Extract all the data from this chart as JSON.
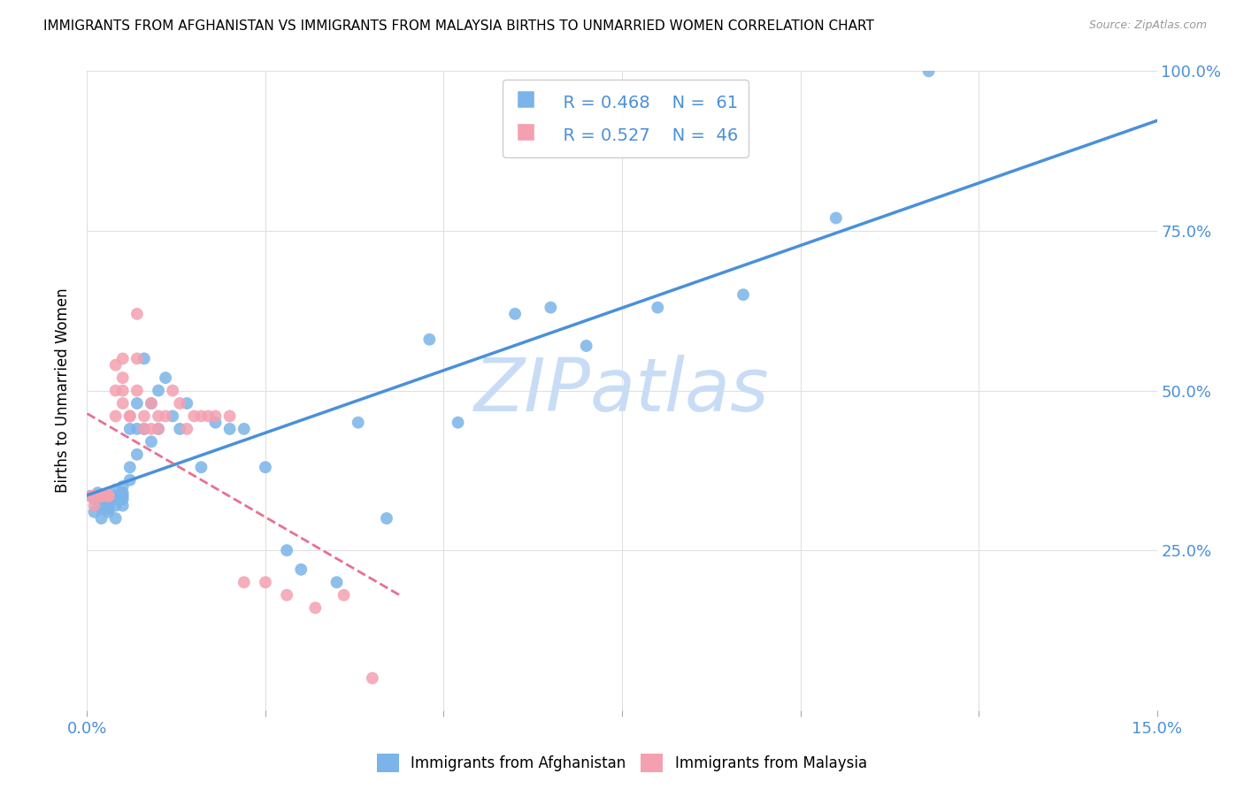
{
  "title": "IMMIGRANTS FROM AFGHANISTAN VS IMMIGRANTS FROM MALAYSIA BIRTHS TO UNMARRIED WOMEN CORRELATION CHART",
  "source": "Source: ZipAtlas.com",
  "ylabel": "Births to Unmarried Women",
  "xlim": [
    0.0,
    0.15
  ],
  "ylim": [
    0.0,
    1.0
  ],
  "legend_r_blue": "R = 0.468",
  "legend_n_blue": "N =  61",
  "legend_r_pink": "R = 0.527",
  "legend_n_pink": "N =  46",
  "blue_color": "#7ab4e8",
  "pink_color": "#f4a0b0",
  "blue_line_color": "#4a90d9",
  "pink_line_color": "#e87090",
  "watermark": "ZIPatlas",
  "watermark_color": "#c8ddf5",
  "afghanistan_x": [
    0.0005,
    0.001,
    0.001,
    0.001,
    0.0015,
    0.0015,
    0.002,
    0.002,
    0.002,
    0.002,
    0.0025,
    0.003,
    0.003,
    0.003,
    0.003,
    0.003,
    0.004,
    0.004,
    0.004,
    0.004,
    0.004,
    0.005,
    0.005,
    0.005,
    0.005,
    0.005,
    0.006,
    0.006,
    0.006,
    0.007,
    0.007,
    0.007,
    0.008,
    0.008,
    0.009,
    0.009,
    0.01,
    0.01,
    0.011,
    0.012,
    0.013,
    0.014,
    0.016,
    0.018,
    0.02,
    0.022,
    0.025,
    0.028,
    0.03,
    0.035,
    0.038,
    0.042,
    0.048,
    0.052,
    0.06,
    0.065,
    0.07,
    0.08,
    0.092,
    0.105,
    0.118
  ],
  "afghanistan_y": [
    0.335,
    0.31,
    0.33,
    0.335,
    0.335,
    0.34,
    0.3,
    0.315,
    0.32,
    0.33,
    0.335,
    0.31,
    0.315,
    0.32,
    0.325,
    0.335,
    0.3,
    0.32,
    0.33,
    0.335,
    0.345,
    0.32,
    0.33,
    0.335,
    0.34,
    0.35,
    0.36,
    0.38,
    0.44,
    0.4,
    0.44,
    0.48,
    0.44,
    0.55,
    0.42,
    0.48,
    0.44,
    0.5,
    0.52,
    0.46,
    0.44,
    0.48,
    0.38,
    0.45,
    0.44,
    0.44,
    0.38,
    0.25,
    0.22,
    0.2,
    0.45,
    0.3,
    0.58,
    0.45,
    0.62,
    0.63,
    0.57,
    0.63,
    0.65,
    0.77,
    1.0
  ],
  "malaysia_x": [
    0.0005,
    0.001,
    0.001,
    0.001,
    0.0015,
    0.0015,
    0.002,
    0.002,
    0.002,
    0.0025,
    0.003,
    0.003,
    0.003,
    0.004,
    0.004,
    0.004,
    0.005,
    0.005,
    0.005,
    0.005,
    0.006,
    0.006,
    0.007,
    0.007,
    0.007,
    0.008,
    0.008,
    0.009,
    0.009,
    0.01,
    0.01,
    0.011,
    0.012,
    0.013,
    0.014,
    0.015,
    0.016,
    0.017,
    0.018,
    0.02,
    0.022,
    0.025,
    0.028,
    0.032,
    0.036,
    0.04
  ],
  "malaysia_y": [
    0.335,
    0.32,
    0.335,
    0.335,
    0.335,
    0.335,
    0.335,
    0.335,
    0.335,
    0.335,
    0.335,
    0.335,
    0.335,
    0.54,
    0.46,
    0.5,
    0.55,
    0.48,
    0.52,
    0.5,
    0.46,
    0.46,
    0.62,
    0.55,
    0.5,
    0.44,
    0.46,
    0.44,
    0.48,
    0.44,
    0.46,
    0.46,
    0.5,
    0.48,
    0.44,
    0.46,
    0.46,
    0.46,
    0.46,
    0.46,
    0.2,
    0.2,
    0.18,
    0.16,
    0.18,
    0.05
  ]
}
